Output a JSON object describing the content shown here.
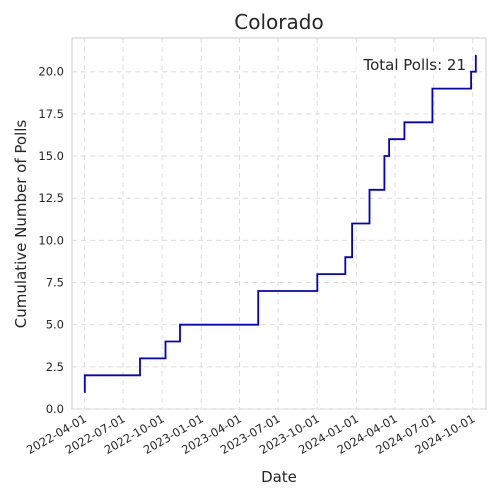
{
  "chart_data": {
    "type": "line",
    "title": "Colorado",
    "xlabel": "Date",
    "ylabel": "Cumulative Number of Polls",
    "grid": true,
    "step": true,
    "line_color": "#0000cc",
    "annotation": "Total Polls: 21",
    "xlim": [
      "2022-03-03",
      "2024-11-01"
    ],
    "ylim": [
      0,
      22
    ],
    "x_ticks": [
      "2022-04-01",
      "2022-07-01",
      "2022-10-01",
      "2023-01-01",
      "2023-04-01",
      "2023-07-01",
      "2023-10-01",
      "2024-01-01",
      "2024-04-01",
      "2024-07-01",
      "2024-10-01"
    ],
    "y_ticks": [
      0.0,
      2.5,
      5.0,
      7.5,
      10.0,
      12.5,
      15.0,
      17.5,
      20.0
    ],
    "y_tick_labels": [
      "0.0",
      "2.5",
      "5.0",
      "7.5",
      "10.0",
      "12.5",
      "15.0",
      "17.5",
      "20.0"
    ],
    "series": [
      {
        "x": [
          "2022-04-01",
          "2022-04-02",
          "2022-08-10",
          "2022-10-09",
          "2022-11-12",
          "2023-05-15",
          "2023-10-01",
          "2023-12-06",
          "2023-12-22",
          "2024-02-01",
          "2024-03-07",
          "2024-03-18",
          "2024-04-23",
          "2024-06-28",
          "2024-09-27",
          "2024-10-08"
        ],
        "y": [
          1,
          2,
          3,
          4,
          5,
          7,
          8,
          9,
          11,
          13,
          15,
          16,
          17,
          19,
          20,
          21
        ]
      }
    ]
  }
}
